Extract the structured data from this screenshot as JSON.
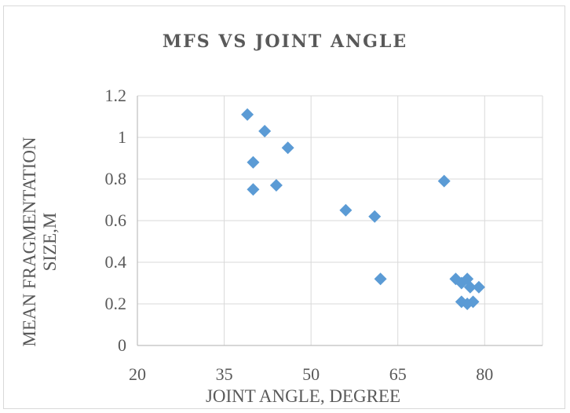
{
  "chart_data": {
    "type": "scatter",
    "title": "MFS VS JOINT ANGLE",
    "xlabel": "JOINT ANGLE, DEGREE",
    "ylabel_lines": [
      "MEAN FRAGMENTATION",
      "SIZE,M"
    ],
    "xlim": [
      20,
      90
    ],
    "ylim": [
      0,
      1.2
    ],
    "x_ticks": [
      20,
      35,
      50,
      65,
      80
    ],
    "y_ticks": [
      0,
      0.2,
      0.4,
      0.6,
      0.8,
      1,
      1.2
    ],
    "x_tick_labels": [
      "20",
      "35",
      "50",
      "65",
      "80"
    ],
    "y_tick_labels": [
      "0",
      "0.2",
      "0.4",
      "0.6",
      "0.8",
      "1",
      "1.2"
    ],
    "grid": true,
    "marker_color": "#5b9bd5",
    "marker_shape": "diamond",
    "points": [
      {
        "x": 39,
        "y": 1.11
      },
      {
        "x": 42,
        "y": 1.03
      },
      {
        "x": 46,
        "y": 0.95
      },
      {
        "x": 40,
        "y": 0.88
      },
      {
        "x": 44,
        "y": 0.77
      },
      {
        "x": 40,
        "y": 0.75
      },
      {
        "x": 56,
        "y": 0.65
      },
      {
        "x": 61,
        "y": 0.62
      },
      {
        "x": 73,
        "y": 0.79
      },
      {
        "x": 62,
        "y": 0.32
      },
      {
        "x": 75,
        "y": 0.32
      },
      {
        "x": 77,
        "y": 0.32
      },
      {
        "x": 76,
        "y": 0.3
      },
      {
        "x": 77.5,
        "y": 0.28
      },
      {
        "x": 79,
        "y": 0.28
      },
      {
        "x": 76,
        "y": 0.21
      },
      {
        "x": 77,
        "y": 0.2
      },
      {
        "x": 78,
        "y": 0.21
      }
    ]
  }
}
